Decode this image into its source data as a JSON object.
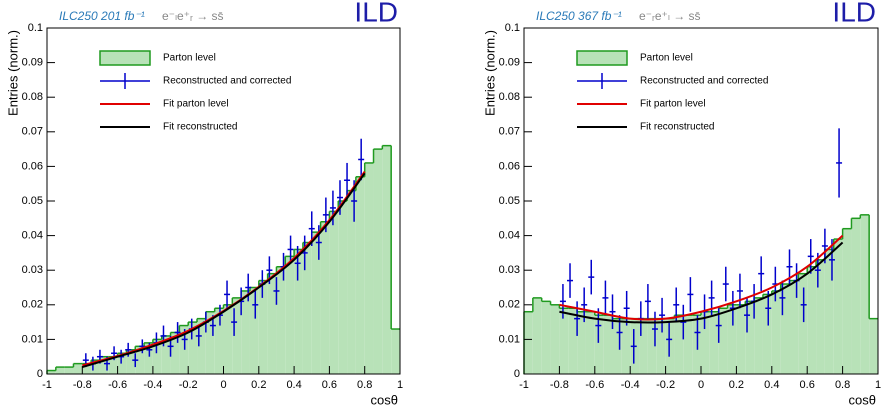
{
  "chart_data": [
    {
      "type": "histogram",
      "title": "ILC250 201 fb⁻¹",
      "subtitle": "e⁻ₗe⁺ᵣ → ss̄",
      "logo": "ILD",
      "ylabel": "Entries (norm.)",
      "xlabel": "cosθ",
      "xlim": [
        -1,
        1
      ],
      "ylim": [
        0,
        0.1
      ],
      "xticks": [
        -1,
        -0.8,
        -0.6,
        -0.4,
        -0.2,
        0,
        0.2,
        0.4,
        0.6,
        0.8,
        1
      ],
      "yticks": [
        0,
        0.01,
        0.02,
        0.03,
        0.04,
        0.05,
        0.06,
        0.07,
        0.08,
        0.09,
        0.1
      ],
      "series": [
        {
          "name": "Parton level",
          "color": "#1f9a1f",
          "fill": "#b8e2b8",
          "bins": [
            -1,
            -0.95,
            -0.9,
            -0.85,
            -0.8,
            -0.75,
            -0.7,
            -0.65,
            -0.6,
            -0.55,
            -0.5,
            -0.45,
            -0.4,
            -0.35,
            -0.3,
            -0.25,
            -0.2,
            -0.15,
            -0.1,
            -0.05,
            0,
            0.05,
            0.1,
            0.15,
            0.2,
            0.25,
            0.3,
            0.35,
            0.4,
            0.45,
            0.5,
            0.55,
            0.6,
            0.65,
            0.7,
            0.75,
            0.8,
            0.85,
            0.9,
            0.95,
            1
          ],
          "values": [
            0.001,
            0.002,
            0.002,
            0.003,
            0.003,
            0.004,
            0.005,
            0.005,
            0.006,
            0.007,
            0.008,
            0.009,
            0.01,
            0.011,
            0.012,
            0.014,
            0.015,
            0.016,
            0.018,
            0.019,
            0.02,
            0.022,
            0.024,
            0.025,
            0.027,
            0.029,
            0.031,
            0.034,
            0.036,
            0.038,
            0.041,
            0.044,
            0.047,
            0.05,
            0.053,
            0.057,
            0.061,
            0.065,
            0.066,
            0.013
          ]
        },
        {
          "name": "Reconstructed and corrected",
          "color": "#0000cc",
          "x": [
            -0.78,
            -0.74,
            -0.7,
            -0.66,
            -0.62,
            -0.58,
            -0.54,
            -0.5,
            -0.46,
            -0.42,
            -0.38,
            -0.34,
            -0.3,
            -0.26,
            -0.22,
            -0.18,
            -0.14,
            -0.1,
            -0.06,
            -0.02,
            0.02,
            0.06,
            0.1,
            0.14,
            0.18,
            0.22,
            0.26,
            0.3,
            0.34,
            0.38,
            0.42,
            0.46,
            0.5,
            0.54,
            0.58,
            0.62,
            0.66,
            0.7,
            0.74,
            0.78
          ],
          "values": [
            0.004,
            0.003,
            0.005,
            0.003,
            0.006,
            0.005,
            0.007,
            0.004,
            0.008,
            0.007,
            0.009,
            0.011,
            0.008,
            0.012,
            0.01,
            0.013,
            0.011,
            0.015,
            0.014,
            0.017,
            0.023,
            0.015,
            0.021,
            0.025,
            0.02,
            0.026,
            0.03,
            0.024,
            0.031,
            0.036,
            0.032,
            0.035,
            0.042,
            0.038,
            0.046,
            0.048,
            0.051,
            0.056,
            0.05,
            0.062
          ],
          "errors": [
            0.002,
            0.002,
            0.002,
            0.002,
            0.002,
            0.002,
            0.002,
            0.002,
            0.002,
            0.002,
            0.003,
            0.003,
            0.003,
            0.003,
            0.003,
            0.003,
            0.003,
            0.003,
            0.003,
            0.003,
            0.004,
            0.004,
            0.004,
            0.004,
            0.004,
            0.004,
            0.004,
            0.004,
            0.004,
            0.004,
            0.005,
            0.005,
            0.005,
            0.005,
            0.005,
            0.005,
            0.005,
            0.005,
            0.006,
            0.006
          ]
        },
        {
          "name": "Fit parton level",
          "color": "#e00000",
          "x": [
            -0.8,
            -0.6,
            -0.4,
            -0.2,
            0,
            0.2,
            0.4,
            0.6,
            0.8
          ],
          "values": [
            0.0025,
            0.0052,
            0.0085,
            0.0125,
            0.0182,
            0.0252,
            0.0335,
            0.0445,
            0.0585
          ]
        },
        {
          "name": "Fit reconstructed",
          "color": "#000000",
          "x": [
            -0.8,
            -0.6,
            -0.4,
            -0.2,
            0,
            0.2,
            0.4,
            0.6,
            0.8
          ],
          "values": [
            0.002,
            0.005,
            0.008,
            0.012,
            0.018,
            0.025,
            0.033,
            0.044,
            0.058
          ]
        }
      ]
    },
    {
      "type": "histogram",
      "title": "ILC250 367 fb⁻¹",
      "subtitle": "e⁻ᵣe⁺ₗ → ss̄",
      "logo": "ILD",
      "ylabel": "Entries (norm.)",
      "xlabel": "cosθ",
      "xlim": [
        -1,
        1
      ],
      "ylim": [
        0,
        0.1
      ],
      "xticks": [
        -1,
        -0.8,
        -0.6,
        -0.4,
        -0.2,
        0,
        0.2,
        0.4,
        0.6,
        0.8,
        1
      ],
      "yticks": [
        0,
        0.01,
        0.02,
        0.03,
        0.04,
        0.05,
        0.06,
        0.07,
        0.08,
        0.09,
        0.1
      ],
      "series": [
        {
          "name": "Parton level",
          "color": "#1f9a1f",
          "fill": "#b8e2b8",
          "bins": [
            -1,
            -0.95,
            -0.9,
            -0.85,
            -0.8,
            -0.75,
            -0.7,
            -0.65,
            -0.6,
            -0.55,
            -0.5,
            -0.45,
            -0.4,
            -0.35,
            -0.3,
            -0.25,
            -0.2,
            -0.15,
            -0.1,
            -0.05,
            0,
            0.05,
            0.1,
            0.15,
            0.2,
            0.25,
            0.3,
            0.35,
            0.4,
            0.45,
            0.5,
            0.55,
            0.6,
            0.65,
            0.7,
            0.75,
            0.8,
            0.85,
            0.9,
            0.95,
            1
          ],
          "values": [
            0.018,
            0.022,
            0.021,
            0.02,
            0.019,
            0.019,
            0.018,
            0.018,
            0.017,
            0.017,
            0.016,
            0.016,
            0.016,
            0.016,
            0.016,
            0.016,
            0.016,
            0.017,
            0.017,
            0.017,
            0.018,
            0.018,
            0.019,
            0.02,
            0.02,
            0.021,
            0.022,
            0.023,
            0.024,
            0.026,
            0.027,
            0.029,
            0.031,
            0.033,
            0.036,
            0.039,
            0.042,
            0.045,
            0.046,
            0.016
          ]
        },
        {
          "name": "Reconstructed and corrected",
          "color": "#0000cc",
          "x": [
            -0.78,
            -0.74,
            -0.7,
            -0.66,
            -0.62,
            -0.58,
            -0.54,
            -0.5,
            -0.46,
            -0.42,
            -0.38,
            -0.34,
            -0.3,
            -0.26,
            -0.22,
            -0.18,
            -0.14,
            -0.1,
            -0.06,
            -0.02,
            0.02,
            0.06,
            0.1,
            0.14,
            0.18,
            0.22,
            0.26,
            0.3,
            0.34,
            0.38,
            0.42,
            0.46,
            0.5,
            0.54,
            0.58,
            0.62,
            0.66,
            0.7,
            0.74,
            0.78
          ],
          "values": [
            0.021,
            0.027,
            0.016,
            0.02,
            0.028,
            0.014,
            0.022,
            0.018,
            0.012,
            0.019,
            0.008,
            0.016,
            0.021,
            0.013,
            0.017,
            0.01,
            0.02,
            0.015,
            0.023,
            0.012,
            0.018,
            0.022,
            0.014,
            0.026,
            0.019,
            0.024,
            0.017,
            0.021,
            0.029,
            0.019,
            0.026,
            0.022,
            0.031,
            0.027,
            0.02,
            0.034,
            0.03,
            0.037,
            0.033,
            0.061
          ],
          "errors": [
            0.005,
            0.005,
            0.005,
            0.005,
            0.005,
            0.005,
            0.005,
            0.005,
            0.005,
            0.005,
            0.005,
            0.005,
            0.005,
            0.005,
            0.005,
            0.005,
            0.005,
            0.005,
            0.005,
            0.005,
            0.005,
            0.005,
            0.005,
            0.005,
            0.005,
            0.005,
            0.005,
            0.005,
            0.005,
            0.005,
            0.005,
            0.005,
            0.005,
            0.005,
            0.005,
            0.005,
            0.005,
            0.005,
            0.006,
            0.01
          ]
        },
        {
          "name": "Fit parton level",
          "color": "#e00000",
          "x": [
            -0.8,
            -0.6,
            -0.4,
            -0.2,
            0,
            0.2,
            0.4,
            0.6,
            0.8
          ],
          "values": [
            0.02,
            0.018,
            0.016,
            0.016,
            0.018,
            0.021,
            0.025,
            0.031,
            0.04
          ]
        },
        {
          "name": "Fit reconstructed",
          "color": "#000000",
          "x": [
            -0.8,
            -0.6,
            -0.4,
            -0.2,
            0,
            0.2,
            0.4,
            0.6,
            0.8
          ],
          "values": [
            0.018,
            0.016,
            0.015,
            0.015,
            0.016,
            0.019,
            0.023,
            0.029,
            0.038
          ]
        }
      ]
    }
  ]
}
